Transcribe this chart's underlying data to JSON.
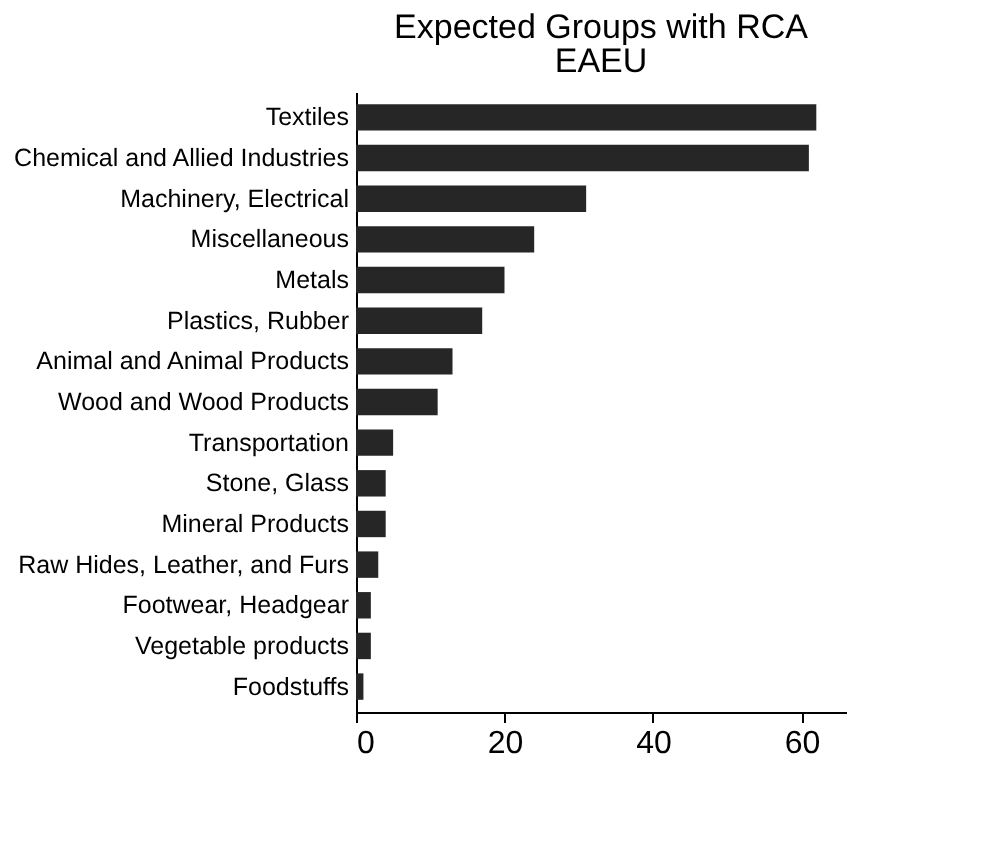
{
  "chart_data": {
    "type": "bar",
    "orientation": "horizontal",
    "title": "Expected Groups with RCA",
    "subtitle": "EAEU",
    "categories": [
      "Textiles",
      "Chemical and Allied Industries",
      "Machinery, Electrical",
      "Miscellaneous",
      "Metals",
      "Plastics, Rubber",
      "Animal and Animal Products",
      "Wood and Wood Products",
      "Transportation",
      "Stone, Glass",
      "Mineral Products",
      "Raw Hides, Leather, and Furs",
      "Footwear, Headgear",
      "Vegetable products",
      "Foodstuffs"
    ],
    "values": [
      62,
      61,
      31,
      24,
      20,
      17,
      13,
      11,
      5,
      4,
      4,
      3,
      2,
      2,
      1
    ],
    "color": "#262626",
    "xlim": [
      0,
      66
    ],
    "xticks": [
      0,
      20,
      40,
      60
    ],
    "grid": false
  }
}
